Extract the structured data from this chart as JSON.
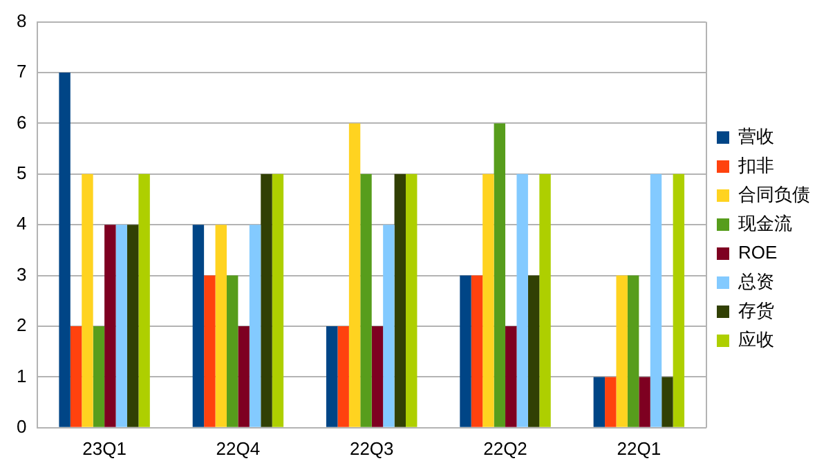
{
  "chart_data": {
    "type": "bar",
    "categories": [
      "23Q1",
      "22Q4",
      "22Q3",
      "22Q2",
      "22Q1"
    ],
    "series": [
      {
        "name": "营收",
        "color": "#004586",
        "values": [
          7,
          4,
          2,
          3,
          1
        ]
      },
      {
        "name": "扣非",
        "color": "#ff420e",
        "values": [
          2,
          3,
          2,
          3,
          1
        ]
      },
      {
        "name": "合同负债",
        "color": "#ffd320",
        "values": [
          5,
          4,
          6,
          5,
          3
        ]
      },
      {
        "name": "现金流",
        "color": "#579d1c",
        "values": [
          2,
          3,
          5,
          6,
          3
        ]
      },
      {
        "name": "ROE",
        "color": "#7e0021",
        "values": [
          4,
          2,
          2,
          2,
          1
        ]
      },
      {
        "name": "总资",
        "color": "#83caff",
        "values": [
          4,
          4,
          4,
          5,
          5
        ]
      },
      {
        "name": "存货",
        "color": "#314004",
        "values": [
          4,
          5,
          5,
          3,
          1
        ]
      },
      {
        "name": "应收",
        "color": "#aecf00",
        "values": [
          5,
          5,
          5,
          5,
          5
        ]
      }
    ],
    "ylim": [
      0,
      8
    ],
    "yticks": [
      0,
      1,
      2,
      3,
      4,
      5,
      6,
      7,
      8
    ],
    "grid": "y",
    "legend": "right"
  }
}
